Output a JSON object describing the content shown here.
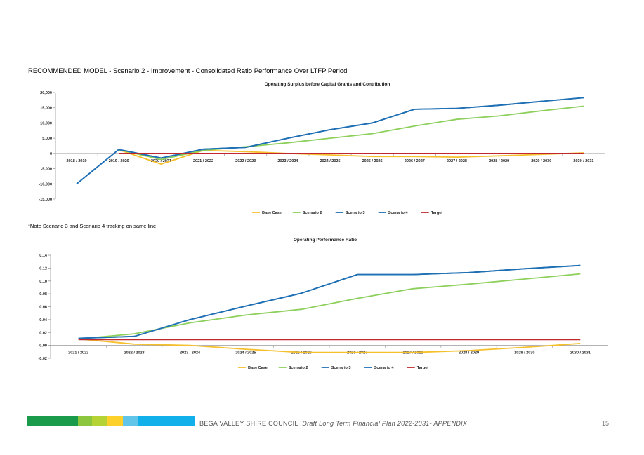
{
  "heading": "RECOMMENDED MODEL - Scenario 2 - Improvement - Consolidated Ratio Performance Over LTFP Period",
  "note": "*Note Scenario 3 and Scenario 4 tracking on same line",
  "footer": {
    "org": "BEGA VALLEY SHIRE COUNCIL",
    "doc": "Draft Long Term Financial Plan 2022-2031- APPENDIX",
    "page_number": "15",
    "bar_colors": [
      "#1a9b4b",
      "#8cc63f",
      "#b5d334",
      "#fdd02a",
      "#60c5e8",
      "#12b0ea"
    ]
  },
  "chart_data": [
    {
      "type": "line",
      "title": "Operating Surplus before Capital Grants and Contribution",
      "categories": [
        "2018 / 2019",
        "2019 / 2020",
        "2020 / 2021",
        "2021 / 2022",
        "2022 / 2023",
        "2023 / 2024",
        "2024 / 2025",
        "2025 / 2026",
        "2026 / 2027",
        "2027 / 2028",
        "2028 / 2029",
        "2029 / 2030",
        "2030 / 2031"
      ],
      "ylim": [
        -15000,
        20000
      ],
      "yticks": [
        {
          "v": 20000,
          "label": "20,000"
        },
        {
          "v": 15000,
          "label": "15,000"
        },
        {
          "v": 10000,
          "label": "10,000"
        },
        {
          "v": 5000,
          "label": "5,000"
        },
        {
          "v": 0,
          "label": "0"
        },
        {
          "v": -5000,
          "label": "-5,000"
        },
        {
          "v": -10000,
          "label": "-10,000"
        },
        {
          "v": -15000,
          "label": "-15,000"
        }
      ],
      "legend_position": "bottom",
      "series": [
        {
          "name": "Base Case",
          "color": "#f6c02d",
          "values": [
            null,
            1200,
            -3500,
            1000,
            600,
            0,
            -500,
            -1000,
            -1000,
            -1200,
            -800,
            -300,
            200
          ]
        },
        {
          "name": "Scenario 2",
          "color": "#8dcf5b",
          "values": [
            null,
            1200,
            -2000,
            1000,
            2200,
            3500,
            5000,
            6500,
            9000,
            11200,
            12300,
            14000,
            15500
          ]
        },
        {
          "name": "Scenario 3",
          "color": "#1f6fb4",
          "values": [
            -10000,
            1300,
            -1500,
            1400,
            2000,
            5000,
            7800,
            10000,
            14500,
            14800,
            15800,
            17100,
            18300
          ]
        },
        {
          "name": "Scenario 4",
          "color": "#1f6fb4",
          "values": [
            -10000,
            1300,
            -1500,
            1400,
            2000,
            5000,
            7800,
            10000,
            14500,
            14800,
            15800,
            17100,
            18300
          ]
        },
        {
          "name": "Target",
          "color": "#c0282d",
          "values": [
            null,
            0,
            0,
            0,
            0,
            0,
            0,
            0,
            0,
            0,
            0,
            0,
            0
          ]
        }
      ]
    },
    {
      "type": "line",
      "title": "Operating Performance Ratio",
      "categories": [
        "2021 / 2022",
        "2022 / 2023",
        "2023 / 2024",
        "2024 / 2025",
        "2025 / 2026",
        "2026 / 2027",
        "2027 / 2028",
        "2028 / 2029",
        "2029 / 2030",
        "2030 / 2031"
      ],
      "ylim": [
        -0.02,
        0.14
      ],
      "yticks": [
        {
          "v": 0.14,
          "label": "0.14"
        },
        {
          "v": 0.12,
          "label": "0.12"
        },
        {
          "v": 0.1,
          "label": "0.10"
        },
        {
          "v": 0.08,
          "label": "0.08"
        },
        {
          "v": 0.06,
          "label": "0.06"
        },
        {
          "v": 0.04,
          "label": "0.04"
        },
        {
          "v": 0.02,
          "label": "0.02"
        },
        {
          "v": 0.0,
          "label": "0.00"
        },
        {
          "v": -0.02,
          "label": "-0.02"
        }
      ],
      "legend_position": "bottom",
      "series": [
        {
          "name": "Base Case",
          "color": "#f6c02d",
          "values": [
            0.01,
            0.002,
            0.0,
            -0.006,
            -0.011,
            -0.011,
            -0.011,
            -0.008,
            -0.003,
            0.003
          ]
        },
        {
          "name": "Scenario 2",
          "color": "#8dcf5b",
          "values": [
            0.01,
            0.018,
            0.035,
            0.047,
            0.056,
            0.073,
            0.088,
            0.095,
            0.103,
            0.111
          ]
        },
        {
          "name": "Scenario 3",
          "color": "#1f6fb4",
          "values": [
            0.011,
            0.014,
            0.04,
            0.061,
            0.081,
            0.11,
            0.11,
            0.113,
            0.119,
            0.124
          ]
        },
        {
          "name": "Scenario 4",
          "color": "#1f6fb4",
          "values": [
            0.011,
            0.014,
            0.04,
            0.061,
            0.081,
            0.11,
            0.11,
            0.113,
            0.119,
            0.124
          ]
        },
        {
          "name": "Target",
          "color": "#c0282d",
          "values": [
            0.009,
            0.009,
            0.009,
            0.009,
            0.009,
            0.009,
            0.009,
            0.009,
            0.009,
            0.009
          ]
        }
      ]
    }
  ]
}
